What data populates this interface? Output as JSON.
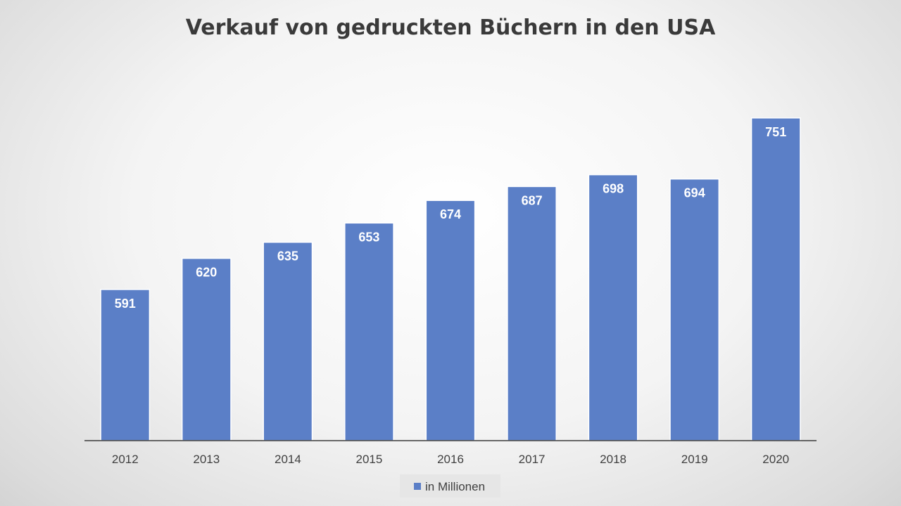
{
  "chart_data": {
    "type": "bar",
    "title": "Verkauf von gedruckten Büchern in den USA",
    "categories": [
      "2012",
      "2013",
      "2014",
      "2015",
      "2016",
      "2017",
      "2018",
      "2019",
      "2020"
    ],
    "series": [
      {
        "name": "in Millionen",
        "values": [
          591,
          620,
          635,
          653,
          674,
          687,
          698,
          694,
          751
        ],
        "color": "#5b7fc7"
      }
    ],
    "xlabel": "",
    "ylabel": "",
    "ylim": [
      450,
      800
    ],
    "data_labels": true,
    "grid": false,
    "legend_position": "bottom-center"
  }
}
